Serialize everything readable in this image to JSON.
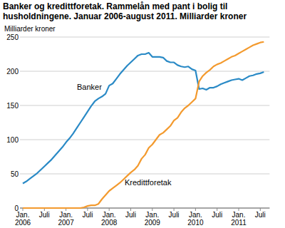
{
  "chart_data": {
    "type": "line",
    "title": "Banker og kredittforetak. Rammelån med pant i bolig til husholdningene. Januar 2006-august 2011. Milliarder kroner",
    "y_label": "Milliarder kroner",
    "categories": [
      "Jan. 2006",
      null,
      null,
      null,
      null,
      null,
      "Juli",
      null,
      null,
      null,
      null,
      null,
      "Jan. 2007",
      null,
      null,
      null,
      null,
      null,
      "Juli",
      null,
      null,
      null,
      null,
      null,
      "Jan. 2008",
      null,
      null,
      null,
      null,
      null,
      "Juli",
      null,
      null,
      null,
      null,
      null,
      "Jan. 2009",
      null,
      null,
      null,
      null,
      null,
      "Juli",
      null,
      null,
      null,
      null,
      null,
      "Jan. 2010",
      null,
      null,
      null,
      null,
      null,
      "Juli",
      null,
      null,
      null,
      null,
      null,
      "Jan. 2011",
      null,
      null,
      null,
      null,
      null,
      "Juli",
      null
    ],
    "series": [
      {
        "name": "Banker",
        "color": "#2a8ac6",
        "values": [
          36,
          39,
          43,
          47,
          51,
          56,
          61,
          66,
          71,
          77,
          83,
          89,
          96,
          102,
          109,
          117,
          125,
          133,
          141,
          149,
          156,
          160,
          163,
          167,
          179,
          182,
          189,
          196,
          202,
          208,
          213,
          218,
          223,
          225,
          225,
          227,
          221,
          221,
          221,
          220,
          215,
          213,
          213,
          209,
          207,
          206,
          207,
          203,
          201,
          174,
          175,
          173,
          176,
          176,
          178,
          181,
          183,
          185,
          187,
          188,
          189,
          187,
          190,
          193,
          194,
          196,
          197,
          199
        ]
      },
      {
        "name": "Kredittforetak",
        "color": "#f39a2e",
        "values": [
          0,
          0,
          0,
          0,
          0,
          0,
          0,
          0,
          0,
          0,
          0,
          0,
          0,
          0,
          0,
          0,
          0,
          1,
          3,
          4,
          4,
          6,
          13,
          19,
          25,
          29,
          33,
          37,
          42,
          47,
          52,
          56,
          62,
          72,
          78,
          88,
          93,
          100,
          107,
          110,
          115,
          120,
          128,
          132,
          140,
          146,
          150,
          155,
          160,
          185,
          193,
          198,
          202,
          207,
          210,
          212,
          215,
          218,
          221,
          223,
          226,
          229,
          232,
          235,
          238,
          240,
          242,
          243
        ]
      }
    ],
    "ylim": [
      0,
      250
    ],
    "yticks": [
      0,
      50,
      100,
      150,
      200,
      250
    ],
    "grid": true
  }
}
